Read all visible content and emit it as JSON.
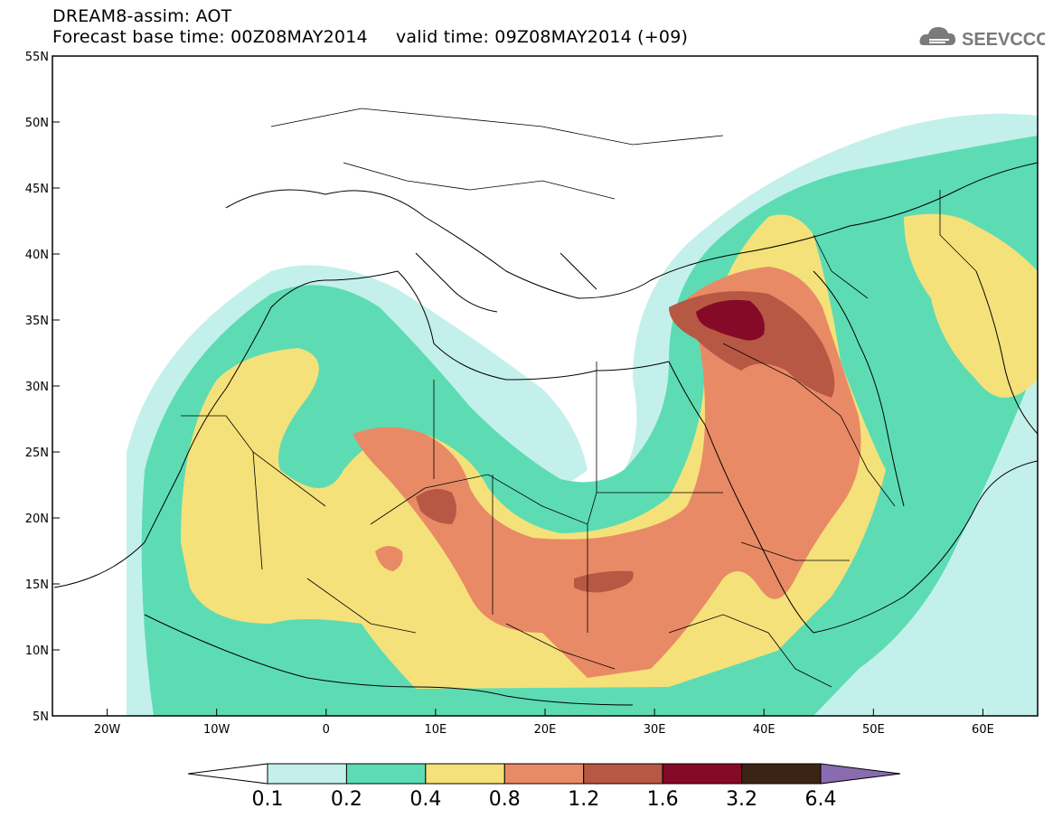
{
  "title": {
    "line1": "DREAM8-assim: AOT",
    "line2": "Forecast base time: 00Z08MAY2014     valid time: 09Z08MAY2014 (+09)"
  },
  "logo": {
    "text": "SEEVCCC",
    "icon": "cloud-icon"
  },
  "map": {
    "lon_range": [
      -25,
      65
    ],
    "lat_range": [
      5,
      55
    ],
    "lon_ticks": [
      "20W",
      "10W",
      "0",
      "10E",
      "20E",
      "30E",
      "40E",
      "50E",
      "60E"
    ],
    "lat_ticks": [
      "55N",
      "50N",
      "45N",
      "40N",
      "35N",
      "30N",
      "25N",
      "20N",
      "15N",
      "10N",
      "5N"
    ]
  },
  "colorbar": {
    "labels": [
      "0.1",
      "0.2",
      "0.4",
      "0.8",
      "1.2",
      "1.6",
      "3.2",
      "6.4"
    ],
    "colors": [
      "#ffffff",
      "#c4f0eb",
      "#5ddcb4",
      "#f5e17a",
      "#e98a66",
      "#b65844",
      "#850a28",
      "#3b2413",
      "#8b6bb0"
    ]
  },
  "levels": {
    "aot_0_1": "#c4f0eb",
    "aot_0_2": "#5ddcb4",
    "aot_0_4": "#f5e17a",
    "aot_0_8": "#e98a66",
    "aot_1_2": "#b65844",
    "aot_1_6": "#850a28"
  }
}
